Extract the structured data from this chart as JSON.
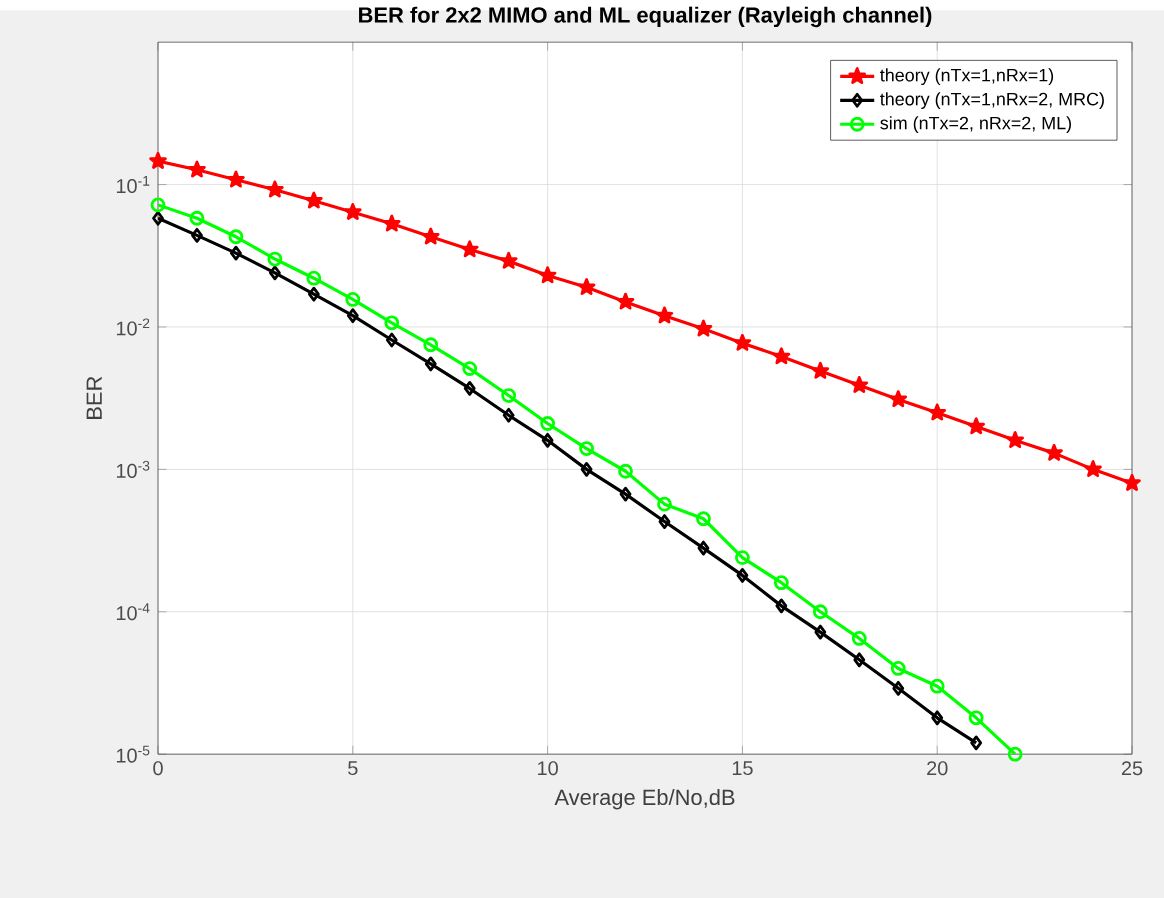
{
  "chart_data": {
    "type": "line",
    "title": "BER for 2x2 MIMO and ML equalizer (Rayleigh channel)",
    "xlabel": "Average Eb/No,dB",
    "ylabel": "BER",
    "x": [
      0,
      1,
      2,
      3,
      4,
      5,
      6,
      7,
      8,
      9,
      10,
      11,
      12,
      13,
      14,
      15,
      16,
      17,
      18,
      19,
      20,
      21,
      22,
      23,
      24,
      25
    ],
    "series": [
      {
        "name": "theory (nTx=1,nRx=1)",
        "color": "#ff0000",
        "marker": "star",
        "values": [
          0.146,
          0.127,
          0.108,
          0.092,
          0.077,
          0.064,
          0.053,
          0.043,
          0.035,
          0.029,
          0.023,
          0.019,
          0.015,
          0.012,
          0.0097,
          0.0077,
          0.0062,
          0.0049,
          0.0039,
          0.0031,
          0.0025,
          0.002,
          0.0016,
          0.0013,
          0.001,
          0.0008
        ]
      },
      {
        "name": "theory (nTx=1,nRx=2, MRC)",
        "color": "#000000",
        "marker": "diamond",
        "values": [
          0.058,
          0.044,
          0.033,
          0.024,
          0.017,
          0.012,
          0.0081,
          0.0055,
          0.0037,
          0.0024,
          0.0016,
          0.001,
          0.00067,
          0.00043,
          0.00028,
          0.00018,
          0.00011,
          7.2e-05,
          4.6e-05,
          2.9e-05,
          1.8e-05,
          1.2e-05,
          null,
          null,
          null,
          null
        ]
      },
      {
        "name": "sim (nTx=2, nRx=2, ML)",
        "color": "#00ff00",
        "marker": "circle",
        "values": [
          0.072,
          0.058,
          0.043,
          0.03,
          0.022,
          0.0156,
          0.0107,
          0.0075,
          0.0051,
          0.0033,
          0.0021,
          0.0014,
          0.00097,
          0.00057,
          0.00045,
          0.00024,
          0.00016,
          0.0001,
          6.5e-05,
          4e-05,
          3e-05,
          1.8e-05,
          1e-05,
          null,
          null,
          null
        ]
      }
    ],
    "xlim": [
      0,
      25
    ],
    "xticks": [
      0,
      5,
      10,
      15,
      20,
      25
    ],
    "ylim": [
      1e-05,
      1
    ],
    "yticks": [
      {
        "value": 1e-05,
        "label": "10$^{-5}$"
      },
      {
        "value": 0.0001,
        "label": "10$^{-4}$"
      },
      {
        "value": 0.001,
        "label": "10$^{-3}$"
      },
      {
        "value": 0.01,
        "label": "10$^{-2}$"
      },
      {
        "value": 0.1,
        "label": "10$^{-1}$"
      }
    ],
    "log": "y",
    "grid": true,
    "legend": "top right",
    "line_style": "solid"
  }
}
